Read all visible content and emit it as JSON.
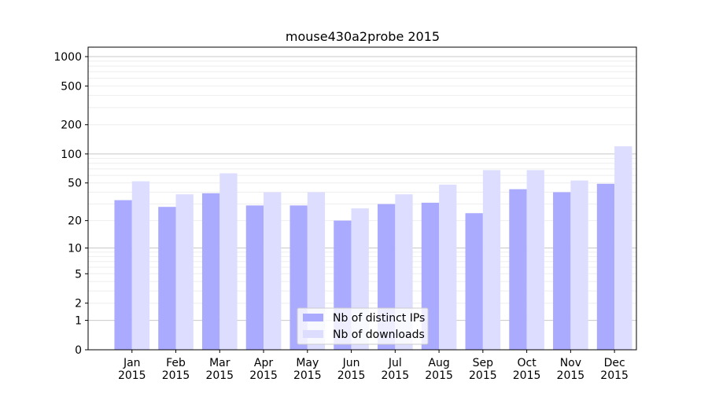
{
  "chart_data": {
    "type": "bar",
    "title": "mouse430a2probe 2015",
    "xlabel": "",
    "ylabel": "",
    "yscale": "symlog",
    "ylim": [
      0,
      1250
    ],
    "yticks": [
      "0",
      "1",
      "2",
      "5",
      "10",
      "20",
      "50",
      "100",
      "200",
      "500",
      "1000"
    ],
    "grid": "horizontal",
    "legend_position": "lower-center",
    "categories": [
      [
        "Jan",
        "2015"
      ],
      [
        "Feb",
        "2015"
      ],
      [
        "Mar",
        "2015"
      ],
      [
        "Apr",
        "2015"
      ],
      [
        "May",
        "2015"
      ],
      [
        "Jun",
        "2015"
      ],
      [
        "Jul",
        "2015"
      ],
      [
        "Aug",
        "2015"
      ],
      [
        "Sep",
        "2015"
      ],
      [
        "Oct",
        "2015"
      ],
      [
        "Nov",
        "2015"
      ],
      [
        "Dec",
        "2015"
      ]
    ],
    "series": [
      {
        "name": "Nb of distinct IPs",
        "color": "#aaaaff",
        "values": [
          33,
          28,
          39,
          29,
          29,
          20,
          30,
          31,
          24,
          43,
          40,
          49
        ]
      },
      {
        "name": "Nb of downloads",
        "color": "#ddddff",
        "values": [
          52,
          38,
          63,
          40,
          40,
          27,
          38,
          48,
          68,
          68,
          53,
          120
        ]
      }
    ]
  }
}
